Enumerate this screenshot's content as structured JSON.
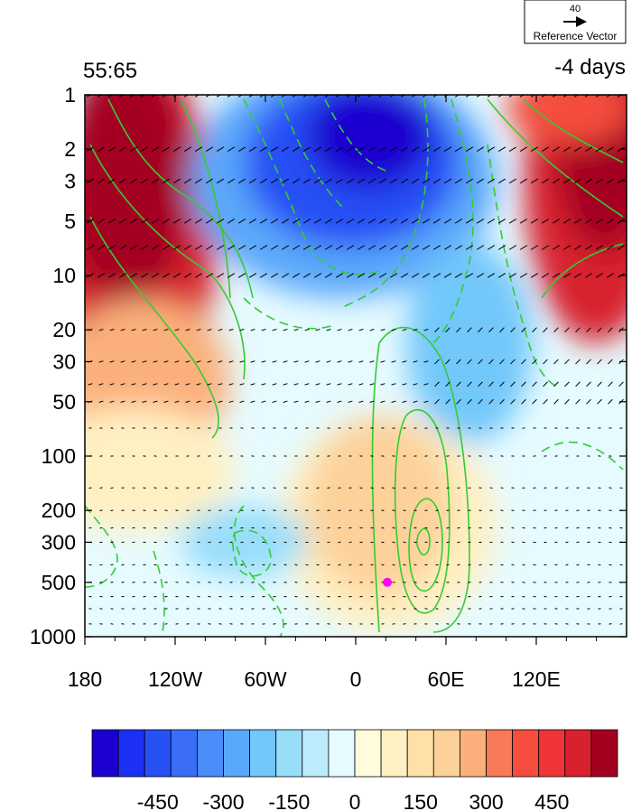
{
  "panel": {
    "left_label": "55:65",
    "right_label": "-4 days"
  },
  "reference_vector": {
    "magnitude": "40",
    "label": "Reference Vector"
  },
  "chart_data": {
    "type": "heatmap",
    "x_axis": {
      "range": [
        -180,
        180
      ],
      "ticks": [
        -180,
        -120,
        -60,
        0,
        60,
        120
      ],
      "tick_labels": [
        "180",
        "120W",
        "60W",
        "0",
        "60E",
        "120E"
      ]
    },
    "y_axis": {
      "scale": "log",
      "reversed": true,
      "range": [
        1,
        1000
      ],
      "ticks": [
        1,
        2,
        3,
        5,
        10,
        20,
        30,
        50,
        100,
        200,
        300,
        500,
        1000
      ],
      "tick_labels": [
        "1",
        "2",
        "3",
        "5",
        "10",
        "20",
        "30",
        "50",
        "100",
        "200",
        "300",
        "500",
        "1000"
      ]
    },
    "colorbar": {
      "colors": [
        "#1c00d0",
        "#1c30f4",
        "#2750f5",
        "#3a6ef7",
        "#4a8cf9",
        "#5aa8fb",
        "#72c7fb",
        "#98defb",
        "#bcecfb",
        "#e6fbff",
        "#fffbdc",
        "#fff0c2",
        "#ffe0a8",
        "#fdd19a",
        "#fbb07c",
        "#f97a56",
        "#f54e3e",
        "#ef3538",
        "#d8202e",
        "#a40020"
      ],
      "tick_values": [
        -450,
        -300,
        -150,
        0,
        150,
        300,
        450
      ],
      "tick_labels": [
        "-450",
        "-300",
        "-150",
        "0",
        "150",
        "300",
        "450"
      ]
    },
    "marker": {
      "x": 21,
      "y": 500,
      "color": "#ff00ff"
    }
  }
}
